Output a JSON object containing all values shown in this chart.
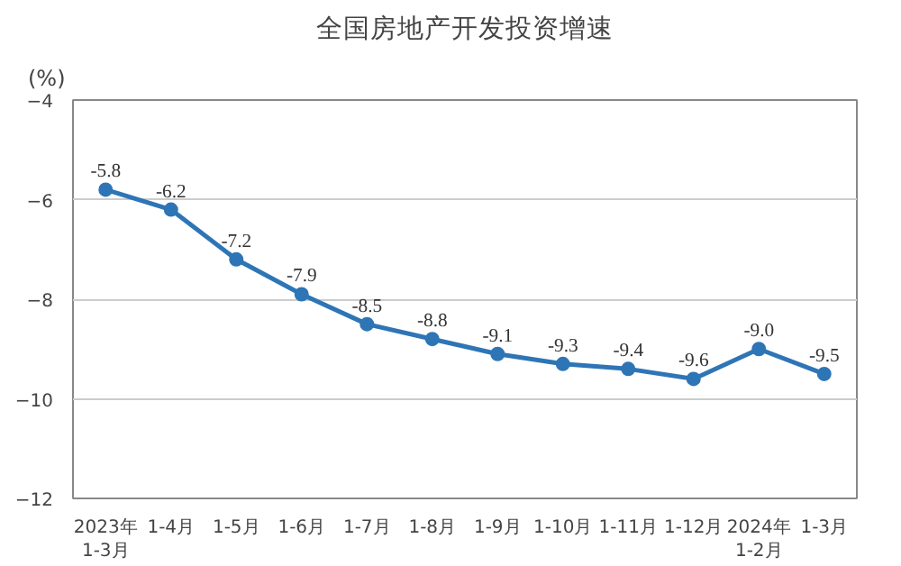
{
  "chart_data": {
    "type": "line",
    "title": "全国房地产开发投资增速",
    "ylabel": "(%)",
    "categories": [
      "2023年\n1-3月",
      "1-4月",
      "1-5月",
      "1-6月",
      "1-7月",
      "1-8月",
      "1-9月",
      "1-10月",
      "1-11月",
      "1-12月",
      "2024年\n1-2月",
      "1-3月"
    ],
    "series": [
      {
        "color": "#2e75b6",
        "values": [
          -5.8,
          -6.2,
          -7.2,
          -7.9,
          -8.5,
          -8.8,
          -9.1,
          -9.3,
          -9.4,
          -9.6,
          -9.0,
          -9.5
        ],
        "value_labels": [
          "-5.8",
          "-6.2",
          "-7.2",
          "-7.9",
          "-8.5",
          "-8.8",
          "-9.1",
          "-9.3",
          "-9.4",
          "-9.6",
          "-9.0",
          "-9.5"
        ]
      }
    ],
    "ylim": [
      -12,
      -4
    ],
    "yticks": [
      -12,
      -10,
      -8,
      -6,
      -4
    ],
    "grid": "y",
    "marker": "circle",
    "line_style": "solid"
  }
}
